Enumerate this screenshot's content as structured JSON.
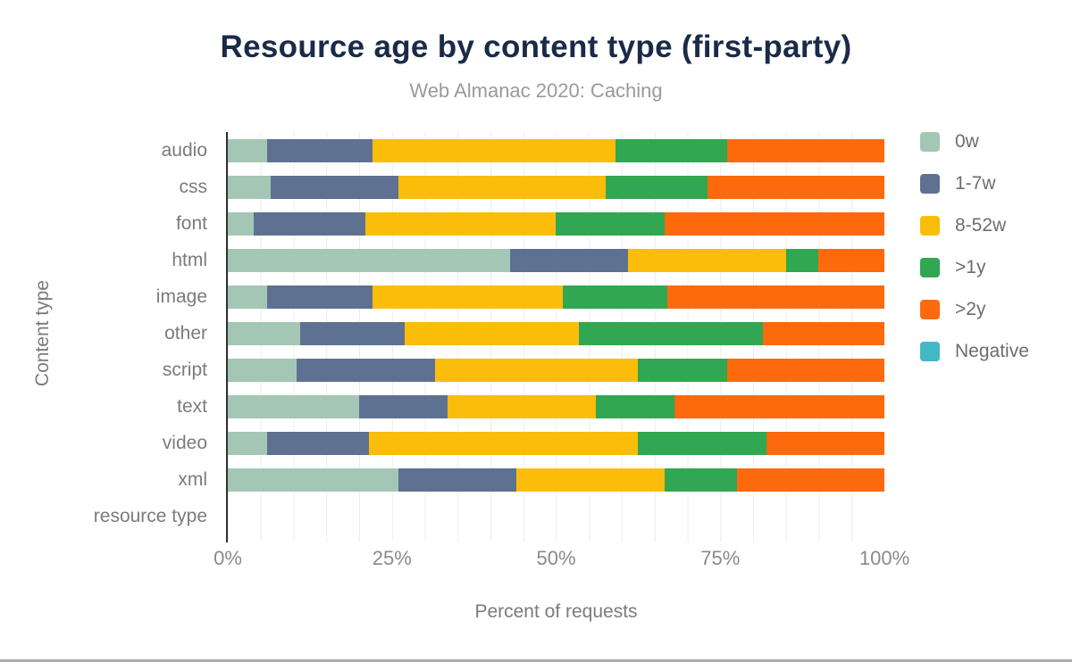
{
  "header": {
    "title": "Resource age by content type (first-party)",
    "subtitle": "Web Almanac 2020: Caching"
  },
  "chart_data": {
    "type": "bar",
    "orientation": "horizontal",
    "stacked": true,
    "title": "Resource age by content type (first-party)",
    "subtitle": "Web Almanac 2020: Caching",
    "xlabel": "Percent of requests",
    "ylabel": "Content type",
    "xlim": [
      0,
      100
    ],
    "x_tick_labels": [
      "0%",
      "25%",
      "50%",
      "75%",
      "100%"
    ],
    "grid": "vertical, minor lines every 5%",
    "legend_position": "right",
    "categories": [
      "audio",
      "css",
      "font",
      "html",
      "image",
      "other",
      "script",
      "text",
      "video",
      "xml",
      "resource type"
    ],
    "series": [
      {
        "name": "0w",
        "color": "#a3c7b4",
        "values": [
          6,
          6.5,
          4,
          43,
          6,
          11,
          10.5,
          20,
          6,
          26,
          0
        ]
      },
      {
        "name": "1-7w",
        "color": "#5e7193",
        "values": [
          16,
          19.5,
          17,
          18,
          16,
          16,
          21,
          13.5,
          15.5,
          18,
          0
        ]
      },
      {
        "name": "8-52w",
        "color": "#fbbd0a",
        "values": [
          37,
          31.5,
          29,
          24,
          29,
          26.5,
          31,
          22.5,
          41,
          22.5,
          0
        ]
      },
      {
        "name": ">1y",
        "color": "#30a750",
        "values": [
          17,
          15.5,
          16.5,
          5,
          16,
          28,
          13.5,
          12,
          19.5,
          11,
          0
        ]
      },
      {
        "name": ">2y",
        "color": "#fd6a0d",
        "values": [
          24,
          27,
          33.5,
          10,
          33,
          18.5,
          24,
          32,
          18,
          22.5,
          0
        ]
      },
      {
        "name": "Negative",
        "color": "#43b9c6",
        "values": [
          0,
          0,
          0,
          0,
          0,
          0,
          0,
          0,
          0,
          0,
          0
        ]
      }
    ]
  },
  "colors": {
    "title_text": "#1a2b49",
    "subtitle_text": "#9a9a9a",
    "axis_text": "#7b7b7b",
    "gridline": "#ececec",
    "axis_line": "#303030"
  }
}
